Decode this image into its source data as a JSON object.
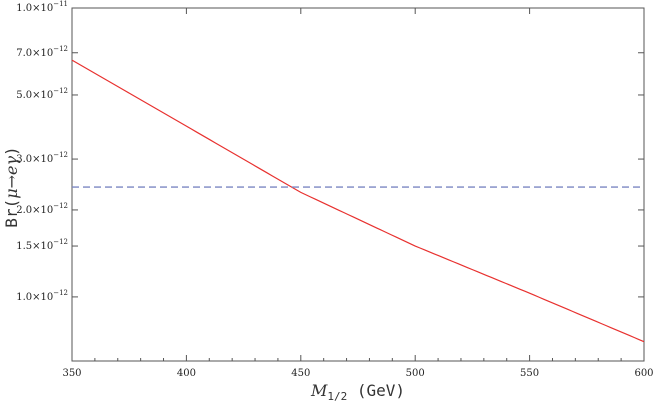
{
  "chart_data": {
    "type": "line",
    "title": "",
    "xlabel": {
      "symbol": "M",
      "subscript": "1/2",
      "unit": " (GeV)"
    },
    "ylabel": {
      "prefix": "Br(",
      "symbol": "μ→eγ",
      "suffix": ")"
    },
    "xlim": [
      350,
      600
    ],
    "ylim": [
      6e-13,
      1e-11
    ],
    "yscale": "log",
    "grid": false,
    "x_ticks": [
      {
        "value": 350,
        "label": "350"
      },
      {
        "value": 400,
        "label": "400"
      },
      {
        "value": 450,
        "label": "450"
      },
      {
        "value": 500,
        "label": "500"
      },
      {
        "value": 550,
        "label": "550"
      },
      {
        "value": 600,
        "label": "600"
      }
    ],
    "y_ticks": [
      {
        "value": 1e-11,
        "mant": "1.0",
        "exp": "−11"
      },
      {
        "value": 7e-12,
        "mant": "7.0",
        "exp": "−12"
      },
      {
        "value": 5e-12,
        "mant": "5.0",
        "exp": "−12"
      },
      {
        "value": 3e-12,
        "mant": "3.0",
        "exp": "−12"
      },
      {
        "value": 2e-12,
        "mant": "2.0",
        "exp": "−12"
      },
      {
        "value": 1.5e-12,
        "mant": "1.5",
        "exp": "−12"
      },
      {
        "value": 1e-12,
        "mant": "1.0",
        "exp": "−12"
      }
    ],
    "series": [
      {
        "style": "solid",
        "color": "#e8312f",
        "x": [
          350,
          400,
          450,
          500,
          550,
          600
        ],
        "y": [
          6.6e-12,
          3.9e-12,
          2.3e-12,
          1.5e-12,
          1.03e-12,
          7e-13
        ]
      },
      {
        "style": "dashed",
        "color": "#7b86c2",
        "x": [
          350,
          600
        ],
        "y": [
          2.4e-12,
          2.4e-12
        ]
      }
    ]
  }
}
